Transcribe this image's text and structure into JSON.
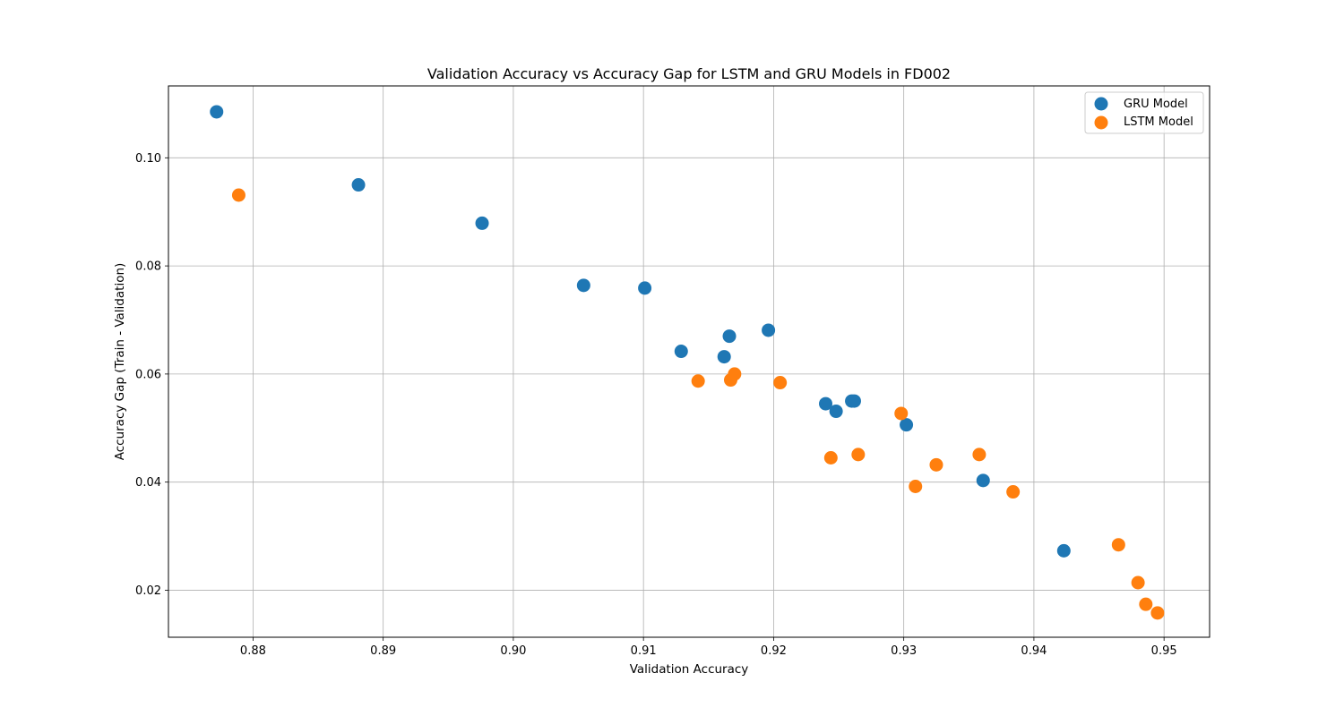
{
  "chart_data": {
    "type": "scatter",
    "title": "Validation Accuracy vs Accuracy Gap for LSTM and GRU Models in FD002",
    "xlabel": "Validation Accuracy",
    "ylabel": "Accuracy Gap (Train - Validation)",
    "xlim": [
      0.8735,
      0.9535
    ],
    "ylim": [
      0.0113,
      0.1133
    ],
    "xticks": [
      0.88,
      0.89,
      0.9,
      0.91,
      0.92,
      0.93,
      0.94,
      0.95
    ],
    "xtick_labels": [
      "0.88",
      "0.89",
      "0.90",
      "0.91",
      "0.92",
      "0.93",
      "0.94",
      "0.95"
    ],
    "yticks": [
      0.02,
      0.04,
      0.06,
      0.08,
      0.1
    ],
    "ytick_labels": [
      "0.02",
      "0.04",
      "0.06",
      "0.08",
      "0.10"
    ],
    "grid": true,
    "legend_position": "top-right",
    "series": [
      {
        "name": "GRU Model",
        "color": "#1f77b4",
        "points": [
          {
            "x": 0.8772,
            "y": 0.1085
          },
          {
            "x": 0.8881,
            "y": 0.095
          },
          {
            "x": 0.8976,
            "y": 0.0879
          },
          {
            "x": 0.9054,
            "y": 0.0764
          },
          {
            "x": 0.9101,
            "y": 0.0759
          },
          {
            "x": 0.9129,
            "y": 0.0642
          },
          {
            "x": 0.9162,
            "y": 0.0632
          },
          {
            "x": 0.9166,
            "y": 0.067
          },
          {
            "x": 0.9196,
            "y": 0.0681
          },
          {
            "x": 0.924,
            "y": 0.0545
          },
          {
            "x": 0.9248,
            "y": 0.0531
          },
          {
            "x": 0.926,
            "y": 0.055
          },
          {
            "x": 0.9262,
            "y": 0.055
          },
          {
            "x": 0.9302,
            "y": 0.0506
          },
          {
            "x": 0.9361,
            "y": 0.0403
          },
          {
            "x": 0.9423,
            "y": 0.0273
          }
        ]
      },
      {
        "name": "LSTM Model",
        "color": "#ff7f0e",
        "points": [
          {
            "x": 0.8789,
            "y": 0.0931
          },
          {
            "x": 0.9142,
            "y": 0.0587
          },
          {
            "x": 0.9167,
            "y": 0.0589
          },
          {
            "x": 0.917,
            "y": 0.06
          },
          {
            "x": 0.9205,
            "y": 0.0584
          },
          {
            "x": 0.9244,
            "y": 0.0445
          },
          {
            "x": 0.9265,
            "y": 0.0451
          },
          {
            "x": 0.9298,
            "y": 0.0527
          },
          {
            "x": 0.9309,
            "y": 0.0392
          },
          {
            "x": 0.9325,
            "y": 0.0432
          },
          {
            "x": 0.9358,
            "y": 0.0451
          },
          {
            "x": 0.9384,
            "y": 0.0382
          },
          {
            "x": 0.9465,
            "y": 0.0284
          },
          {
            "x": 0.948,
            "y": 0.0214
          },
          {
            "x": 0.9486,
            "y": 0.0174
          },
          {
            "x": 0.9495,
            "y": 0.0158
          }
        ]
      }
    ]
  }
}
